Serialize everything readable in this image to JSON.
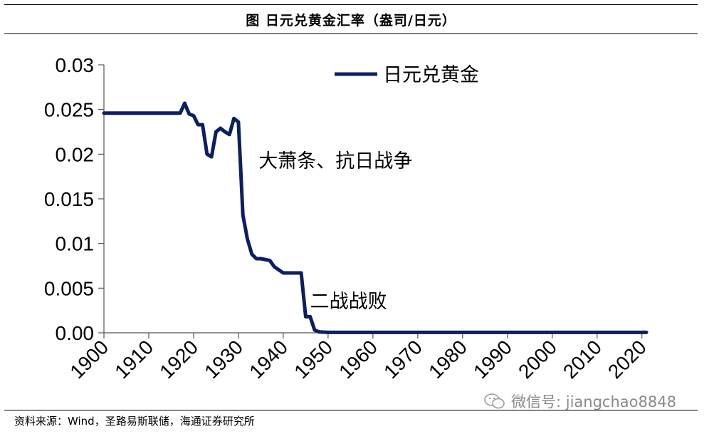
{
  "figure_title": "图  日元兑黄金汇率（盎司/日元）",
  "source_note": "资料来源：Wind，圣路易斯联储，海通证券研究所",
  "watermark": "微信号: jiangchao8848",
  "chart_data": {
    "type": "line",
    "title": "",
    "xlabel": "",
    "ylabel": "",
    "xlim": [
      1900,
      2021
    ],
    "ylim": [
      0,
      0.03
    ],
    "x_ticks": [
      1900,
      1910,
      1920,
      1930,
      1940,
      1950,
      1960,
      1970,
      1980,
      1990,
      2000,
      2010,
      2020
    ],
    "y_ticks": [
      0,
      0.005,
      0.01,
      0.015,
      0.02,
      0.025,
      0.03
    ],
    "x_tick_labels": [
      "1900",
      "1910",
      "1920",
      "1930",
      "1940",
      "1950",
      "1960",
      "1970",
      "1980",
      "1990",
      "2000",
      "2010",
      "2020"
    ],
    "y_tick_labels": [
      "0.00",
      "0.005",
      "0.01",
      "0.015",
      "0.02",
      "0.025",
      "0.03"
    ],
    "grid": false,
    "legend_position": "top-center",
    "line_color": "#0d1f5c",
    "series": [
      {
        "name": "日元兑黄金",
        "x": [
          1900,
          1917,
          1918,
          1919,
          1920,
          1921,
          1922,
          1923,
          1924,
          1925,
          1926,
          1927,
          1928,
          1929,
          1930,
          1931,
          1932,
          1933,
          1934,
          1935,
          1937,
          1938,
          1940,
          1942,
          1944,
          1945,
          1946,
          1947,
          1948,
          1950,
          1960,
          1970,
          1980,
          1990,
          2000,
          2010,
          2021
        ],
        "y": [
          0.0246,
          0.0246,
          0.0257,
          0.0245,
          0.0243,
          0.0233,
          0.0233,
          0.02,
          0.0197,
          0.0225,
          0.0229,
          0.0225,
          0.0222,
          0.024,
          0.0236,
          0.0132,
          0.0105,
          0.0088,
          0.0083,
          0.0083,
          0.0081,
          0.0074,
          0.0067,
          0.0067,
          0.0067,
          0.0018,
          0.0018,
          0.0003,
          0.0001,
          5e-05,
          5e-05,
          5e-05,
          5e-05,
          5e-05,
          5e-05,
          5e-05,
          5e-05
        ]
      }
    ],
    "annotations": [
      {
        "text": "大萧条、抗日战争",
        "x": 1934.5,
        "y": 0.0185
      },
      {
        "text": "二战战败",
        "x": 1946,
        "y": 0.0028
      }
    ]
  }
}
